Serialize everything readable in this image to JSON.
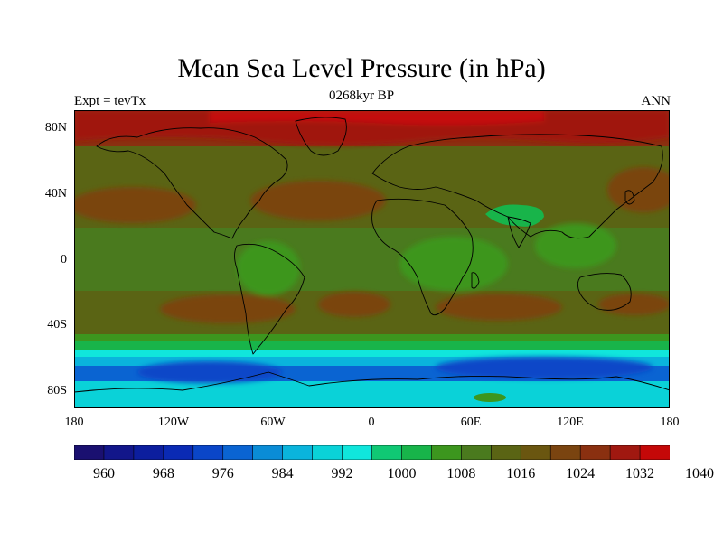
{
  "title": "Mean Sea Level Pressure (in hPa)",
  "subtitle": "0268kyr BP",
  "left_label": "Expt = tevTx",
  "right_label": "ANN",
  "map": {
    "projection": "cylindrical equidistant",
    "lat_range": [
      -90,
      90
    ],
    "lon_range": [
      -180,
      180
    ],
    "coastlines": true,
    "lat_ticks": [
      {
        "value": 80,
        "label": "80N"
      },
      {
        "value": 40,
        "label": "40N"
      },
      {
        "value": 0,
        "label": "0"
      },
      {
        "value": -40,
        "label": "40S"
      },
      {
        "value": -80,
        "label": "80S"
      }
    ],
    "lon_ticks": [
      {
        "value": -180,
        "label": "180"
      },
      {
        "value": -120,
        "label": "120W"
      },
      {
        "value": -60,
        "label": "60W"
      },
      {
        "value": 0,
        "label": "0"
      },
      {
        "value": 60,
        "label": "60E"
      },
      {
        "value": 120,
        "label": "120E"
      },
      {
        "value": 180,
        "label": "180"
      }
    ]
  },
  "colorbar": {
    "label_values": [
      "960",
      "968",
      "976",
      "984",
      "992",
      "1000",
      "1008",
      "1016",
      "1024",
      "1032",
      "1040"
    ],
    "colors": [
      "#1a1070",
      "#12168a",
      "#0c1e9e",
      "#0a2ab4",
      "#0a46c8",
      "#0a64d2",
      "#0a8cd6",
      "#0ab4dc",
      "#0ad2d8",
      "#10e6dc",
      "#10c874",
      "#18b44a",
      "#3c961e",
      "#4a7a1e",
      "#5a6414",
      "#6a5610",
      "#7a4410",
      "#8a3010",
      "#a01810",
      "#c40808"
    ]
  },
  "legend_colors": {
    "ocean_high": "#8a3010",
    "mid": "#5a6414",
    "low_green": "#3c961e",
    "southern_cyan": "#0ad2d8",
    "southern_blue": "#0a64d2"
  }
}
